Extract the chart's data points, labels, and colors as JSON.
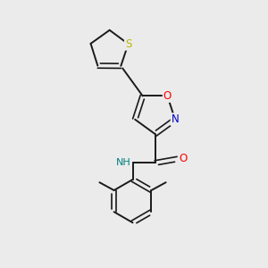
{
  "background_color": "#ebebeb",
  "bond_color": "#1a1a1a",
  "atom_colors": {
    "S": "#b8b800",
    "O": "#ff0000",
    "N_iso": "#0000cc",
    "N_amide": "#008080",
    "C": "#1a1a1a"
  },
  "font_size_atoms": 8.5,
  "figsize": [
    3.0,
    3.0
  ],
  "dpi": 100
}
